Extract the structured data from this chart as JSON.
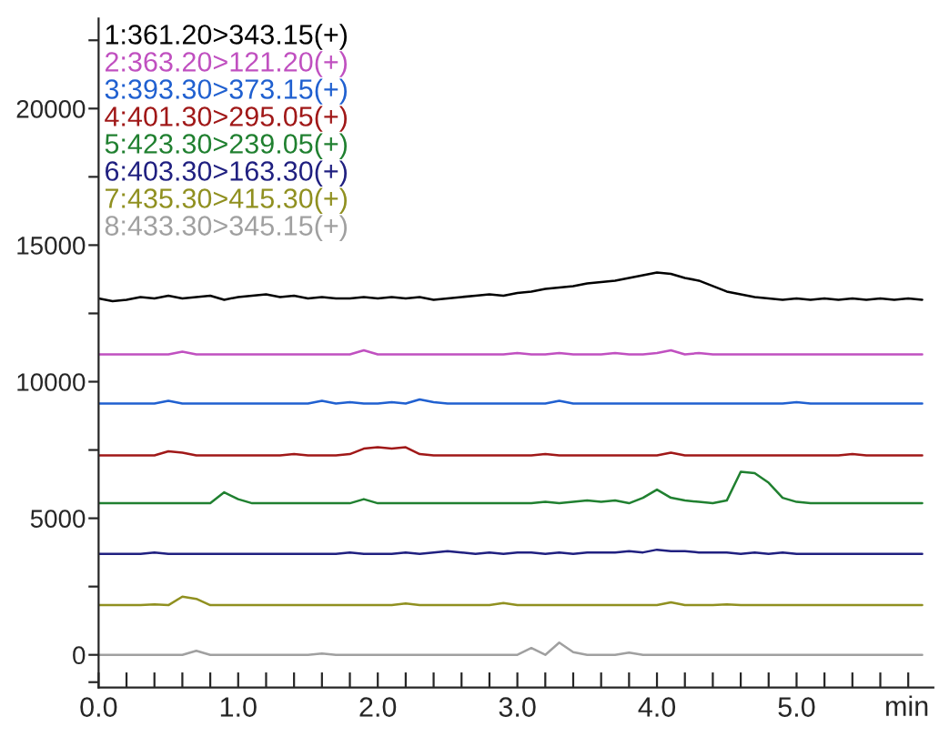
{
  "chart_data": {
    "type": "line",
    "xlabel": "min",
    "x": [
      0.0,
      0.1,
      0.2,
      0.3,
      0.4,
      0.5,
      0.6,
      0.7,
      0.8,
      0.9,
      1.0,
      1.1,
      1.2,
      1.3,
      1.4,
      1.5,
      1.6,
      1.7,
      1.8,
      1.9,
      2.0,
      2.1,
      2.2,
      2.3,
      2.4,
      2.5,
      2.6,
      2.7,
      2.8,
      2.9,
      3.0,
      3.1,
      3.2,
      3.3,
      3.4,
      3.5,
      3.6,
      3.7,
      3.8,
      3.9,
      4.0,
      4.1,
      4.2,
      4.3,
      4.4,
      4.5,
      4.6,
      4.7,
      4.8,
      4.9,
      5.0,
      5.1,
      5.2,
      5.3,
      5.4,
      5.5,
      5.6,
      5.7,
      5.8,
      5.9
    ],
    "series": [
      {
        "name": "1:361.20>343.15(+)",
        "color": "#000000",
        "values": [
          13050,
          12950,
          13000,
          13100,
          13050,
          13150,
          13050,
          13100,
          13150,
          13000,
          13100,
          13150,
          13200,
          13100,
          13150,
          13050,
          13100,
          13050,
          13050,
          13100,
          13050,
          13100,
          13050,
          13100,
          13000,
          13050,
          13100,
          13150,
          13200,
          13150,
          13250,
          13300,
          13400,
          13450,
          13500,
          13600,
          13650,
          13700,
          13800,
          13900,
          14000,
          13950,
          13800,
          13700,
          13500,
          13300,
          13200,
          13100,
          13050,
          13000,
          13050,
          13000,
          13050,
          13000,
          13050,
          13000,
          13050,
          13000,
          13050,
          13000
        ]
      },
      {
        "name": "2:363.20>121.20(+)",
        "color": "#c050c0",
        "values": [
          11000,
          11000,
          11000,
          11000,
          11000,
          11000,
          11100,
          11000,
          11000,
          11000,
          11000,
          11000,
          11000,
          11000,
          11000,
          11000,
          11000,
          11000,
          11000,
          11150,
          11000,
          11000,
          11000,
          11000,
          11000,
          11000,
          11000,
          11000,
          11000,
          11000,
          11050,
          11000,
          11000,
          11050,
          11000,
          11000,
          11000,
          11050,
          11000,
          11000,
          11050,
          11150,
          11000,
          11050,
          11000,
          11000,
          11000,
          11000,
          11000,
          11000,
          11000,
          11000,
          11000,
          11000,
          11000,
          11000,
          11000,
          11000,
          11000,
          11000
        ]
      },
      {
        "name": "3:393.30>373.15(+)",
        "color": "#2060d0",
        "values": [
          9200,
          9200,
          9200,
          9200,
          9200,
          9300,
          9200,
          9200,
          9200,
          9200,
          9200,
          9200,
          9200,
          9200,
          9200,
          9200,
          9300,
          9200,
          9250,
          9200,
          9200,
          9250,
          9200,
          9350,
          9250,
          9200,
          9200,
          9200,
          9200,
          9200,
          9200,
          9200,
          9200,
          9300,
          9200,
          9200,
          9200,
          9200,
          9200,
          9200,
          9200,
          9200,
          9200,
          9200,
          9200,
          9200,
          9200,
          9200,
          9200,
          9200,
          9250,
          9200,
          9200,
          9200,
          9200,
          9200,
          9200,
          9200,
          9200,
          9200
        ]
      },
      {
        "name": "4:401.30>295.05(+)",
        "color": "#a01818",
        "values": [
          7300,
          7300,
          7300,
          7300,
          7300,
          7450,
          7400,
          7300,
          7300,
          7300,
          7300,
          7300,
          7300,
          7300,
          7350,
          7300,
          7300,
          7300,
          7350,
          7550,
          7600,
          7550,
          7600,
          7350,
          7300,
          7300,
          7300,
          7300,
          7300,
          7300,
          7300,
          7300,
          7350,
          7300,
          7300,
          7300,
          7300,
          7300,
          7300,
          7300,
          7300,
          7400,
          7300,
          7300,
          7300,
          7300,
          7300,
          7300,
          7300,
          7300,
          7300,
          7300,
          7300,
          7300,
          7350,
          7300,
          7300,
          7300,
          7300,
          7300
        ]
      },
      {
        "name": "5:423.30>239.05(+)",
        "color": "#208030",
        "values": [
          5550,
          5550,
          5550,
          5550,
          5550,
          5550,
          5550,
          5550,
          5550,
          5950,
          5700,
          5550,
          5550,
          5550,
          5550,
          5550,
          5550,
          5550,
          5550,
          5700,
          5550,
          5550,
          5550,
          5550,
          5550,
          5550,
          5550,
          5550,
          5550,
          5550,
          5550,
          5550,
          5600,
          5550,
          5600,
          5650,
          5600,
          5650,
          5550,
          5750,
          6050,
          5750,
          5650,
          5600,
          5550,
          5650,
          6700,
          6650,
          6300,
          5750,
          5600,
          5550,
          5550,
          5550,
          5550,
          5550,
          5550,
          5550,
          5550,
          5550
        ]
      },
      {
        "name": "6:403.30>163.30(+)",
        "color": "#202080",
        "values": [
          3700,
          3700,
          3700,
          3700,
          3750,
          3700,
          3700,
          3700,
          3700,
          3700,
          3700,
          3700,
          3700,
          3700,
          3700,
          3700,
          3700,
          3700,
          3750,
          3700,
          3700,
          3700,
          3750,
          3700,
          3750,
          3800,
          3750,
          3700,
          3750,
          3700,
          3750,
          3750,
          3700,
          3750,
          3700,
          3750,
          3750,
          3750,
          3800,
          3750,
          3850,
          3800,
          3800,
          3750,
          3750,
          3750,
          3700,
          3750,
          3700,
          3750,
          3700,
          3700,
          3700,
          3700,
          3700,
          3700,
          3700,
          3700,
          3700,
          3700
        ]
      },
      {
        "name": "7:435.30>415.30(+)",
        "color": "#909020",
        "values": [
          1820,
          1820,
          1820,
          1820,
          1850,
          1820,
          2130,
          2050,
          1820,
          1820,
          1820,
          1820,
          1820,
          1820,
          1820,
          1820,
          1820,
          1820,
          1820,
          1820,
          1820,
          1820,
          1880,
          1820,
          1820,
          1820,
          1820,
          1820,
          1820,
          1900,
          1820,
          1820,
          1820,
          1820,
          1820,
          1820,
          1820,
          1820,
          1820,
          1820,
          1820,
          1920,
          1820,
          1820,
          1820,
          1850,
          1820,
          1820,
          1820,
          1820,
          1820,
          1820,
          1820,
          1820,
          1820,
          1820,
          1820,
          1820,
          1820,
          1820
        ]
      },
      {
        "name": "8:433.30>345.15(+)",
        "color": "#a0a0a0",
        "values": [
          0,
          0,
          0,
          0,
          0,
          0,
          0,
          150,
          0,
          0,
          0,
          0,
          0,
          0,
          0,
          0,
          50,
          0,
          0,
          0,
          0,
          0,
          0,
          0,
          0,
          0,
          0,
          0,
          0,
          0,
          0,
          250,
          0,
          450,
          100,
          0,
          0,
          0,
          80,
          0,
          0,
          0,
          0,
          0,
          0,
          0,
          0,
          0,
          0,
          0,
          0,
          0,
          0,
          0,
          0,
          0,
          0,
          0,
          0,
          0
        ]
      }
    ],
    "xlim": [
      0,
      5.98
    ],
    "xticks": [
      {
        "value": 0,
        "label": "0.0"
      },
      {
        "value": 0.2,
        "label": null
      },
      {
        "value": 0.4,
        "label": null
      },
      {
        "value": 0.6,
        "label": null
      },
      {
        "value": 0.8,
        "label": null
      },
      {
        "value": 1,
        "label": "1.0"
      },
      {
        "value": 1.2,
        "label": null
      },
      {
        "value": 1.4,
        "label": null
      },
      {
        "value": 1.6,
        "label": null
      },
      {
        "value": 1.8,
        "label": null
      },
      {
        "value": 2,
        "label": "2.0"
      },
      {
        "value": 2.2,
        "label": null
      },
      {
        "value": 2.4,
        "label": null
      },
      {
        "value": 2.6,
        "label": null
      },
      {
        "value": 2.8,
        "label": null
      },
      {
        "value": 3,
        "label": "3.0"
      },
      {
        "value": 3.2,
        "label": null
      },
      {
        "value": 3.4,
        "label": null
      },
      {
        "value": 3.6,
        "label": null
      },
      {
        "value": 3.8,
        "label": null
      },
      {
        "value": 4,
        "label": "4.0"
      },
      {
        "value": 4.2,
        "label": null
      },
      {
        "value": 4.4,
        "label": null
      },
      {
        "value": 4.6,
        "label": null
      },
      {
        "value": 4.8,
        "label": null
      },
      {
        "value": 5,
        "label": "5.0"
      },
      {
        "value": 5.2,
        "label": null
      },
      {
        "value": 5.4,
        "label": null
      },
      {
        "value": 5.6,
        "label": null
      },
      {
        "value": 5.8,
        "label": null
      }
    ],
    "ylim": [
      -1200,
      23300
    ],
    "yticks": [
      {
        "value": -1000,
        "label": null
      },
      0,
      {
        "value": 2500,
        "label": null
      },
      5000,
      {
        "value": 7500,
        "label": null
      },
      10000,
      {
        "value": 12500,
        "label": null
      },
      15000,
      {
        "value": 17500,
        "label": null
      },
      20000,
      {
        "value": 22500,
        "label": null
      }
    ],
    "legend": "top left",
    "grid": false,
    "marker": "none",
    "line_style": "solid"
  }
}
